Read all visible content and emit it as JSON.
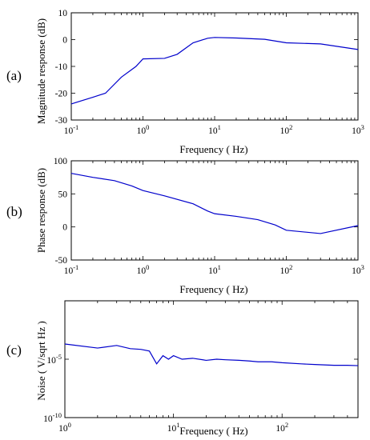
{
  "chart_data": [
    {
      "type": "line",
      "panel_label": "(a)",
      "xlabel": "Frequency ( Hz)",
      "ylabel": "Magnitude response (dB)",
      "xscale": "log",
      "xlim": [
        0.1,
        1000
      ],
      "ylim": [
        -30,
        10
      ],
      "yticks": [
        -30,
        -20,
        -10,
        0,
        10
      ],
      "xtick_labels": [
        {
          "base": "10",
          "exp": "-1"
        },
        {
          "base": "10",
          "exp": "0"
        },
        {
          "base": "10",
          "exp": "1"
        },
        {
          "base": "10",
          "exp": "2"
        },
        {
          "base": "10",
          "exp": "3"
        }
      ],
      "line_color": "#0000cc",
      "x": [
        0.1,
        0.2,
        0.3,
        0.5,
        0.8,
        1.0,
        2.0,
        3.0,
        5.0,
        8.0,
        10,
        20,
        50,
        100,
        300,
        1000
      ],
      "y": [
        -24,
        -21.5,
        -20,
        -14,
        -10,
        -7.2,
        -7,
        -5.5,
        -1.2,
        0.5,
        0.8,
        0.6,
        0.1,
        -1.2,
        -1.6,
        -3.7
      ]
    },
    {
      "type": "line",
      "panel_label": "(b)",
      "xlabel": "Frequency ( Hz)",
      "ylabel": "Phase response (dB)",
      "xscale": "log",
      "xlim": [
        0.1,
        1000
      ],
      "ylim": [
        -50,
        100
      ],
      "yticks": [
        -50,
        0,
        50,
        100
      ],
      "xtick_labels": [
        {
          "base": "10",
          "exp": "-1"
        },
        {
          "base": "10",
          "exp": "0"
        },
        {
          "base": "10",
          "exp": "1"
        },
        {
          "base": "10",
          "exp": "2"
        },
        {
          "base": "10",
          "exp": "3"
        }
      ],
      "line_color": "#0000cc",
      "x": [
        0.1,
        0.2,
        0.4,
        0.7,
        1.0,
        2.0,
        5.0,
        8.0,
        10,
        20,
        40,
        70,
        100,
        300,
        1000
      ],
      "y": [
        81,
        75,
        70,
        62,
        55,
        47,
        35,
        24,
        20,
        16,
        11,
        3,
        -5,
        -10,
        2
      ]
    },
    {
      "type": "line",
      "panel_label": "(c)",
      "xlabel": "Frequency ( Hz)",
      "ylabel": "Noise ( V/sqrt Hz )",
      "xscale": "log",
      "yscale": "log",
      "xlim": [
        1,
        500
      ],
      "ylim": [
        1e-10,
        1
      ],
      "xtick_labels": [
        {
          "base": "10",
          "exp": "0"
        },
        {
          "base": "10",
          "exp": "1"
        },
        {
          "base": "10",
          "exp": "2"
        }
      ],
      "ytick_labels": [
        {
          "base": "10",
          "exp": "-10",
          "value": 1e-10
        },
        {
          "base": "10",
          "exp": "-5",
          "value": 1e-05
        }
      ],
      "line_color": "#0000cc",
      "x": [
        1,
        2,
        3,
        4,
        5,
        6,
        7,
        8,
        9,
        10,
        12,
        15,
        20,
        25,
        30,
        40,
        50,
        60,
        80,
        100,
        150,
        200,
        300,
        400,
        500
      ],
      "y": [
        0.0002,
        9e-05,
        0.00015,
        8e-05,
        7e-05,
        5e-05,
        4e-06,
        2e-05,
        1e-05,
        2e-05,
        1e-05,
        1.2e-05,
        8e-06,
        1e-05,
        9e-06,
        8e-06,
        7e-06,
        6e-06,
        6e-06,
        5e-06,
        4e-06,
        3.5e-06,
        3e-06,
        3e-06,
        2.8e-06
      ]
    }
  ]
}
